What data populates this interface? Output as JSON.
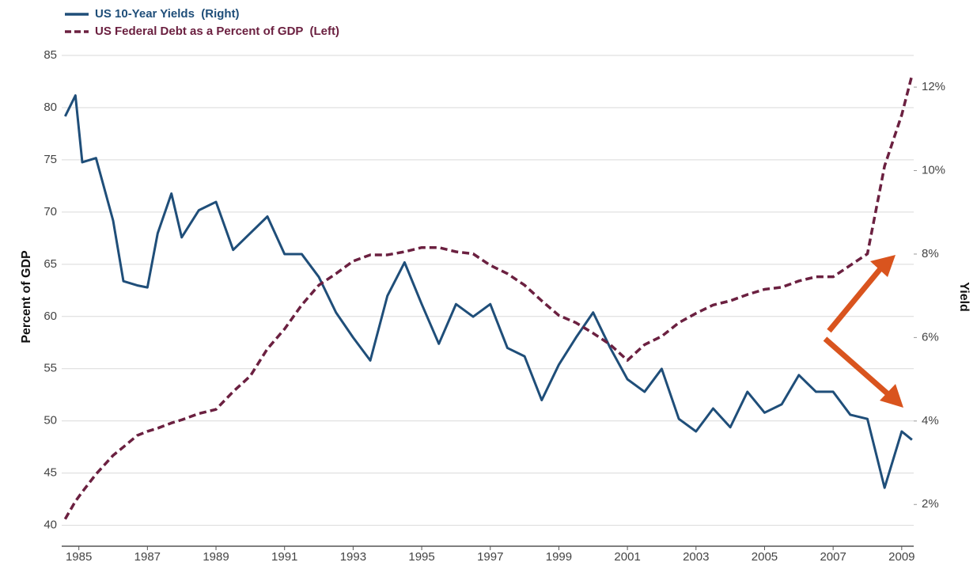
{
  "chart_data": {
    "type": "line",
    "y_label": "Percent of GDP",
    "y2_label": "Yield",
    "x": [
      1984.6,
      1984.9,
      1985.1,
      1985.5,
      1986.0,
      1986.3,
      1986.7,
      1987.0,
      1987.3,
      1987.7,
      1988.0,
      1988.5,
      1989.0,
      1989.5,
      1990.0,
      1990.5,
      1991.0,
      1991.5,
      1992.0,
      1992.5,
      1993.0,
      1993.5,
      1994.0,
      1994.5,
      1995.0,
      1995.5,
      1996.0,
      1996.5,
      1997.0,
      1997.5,
      1998.0,
      1998.5,
      1999.0,
      1999.5,
      2000.0,
      2000.5,
      2001.0,
      2001.5,
      2002.0,
      2002.5,
      2003.0,
      2003.5,
      2004.0,
      2004.5,
      2005.0,
      2005.5,
      2006.0,
      2006.5,
      2007.0,
      2007.5,
      2008.0,
      2008.5,
      2009.0,
      2009.3
    ],
    "series": [
      {
        "name": "US 10-Year Yields  (Right)",
        "color": "#1f4e79",
        "axis": "y2",
        "dashed": false,
        "values": [
          11.3,
          11.8,
          10.2,
          10.3,
          8.8,
          7.35,
          7.25,
          7.2,
          8.5,
          9.45,
          8.4,
          9.05,
          9.25,
          8.1,
          8.5,
          8.9,
          8.0,
          8.0,
          7.45,
          6.6,
          6.0,
          5.45,
          7.0,
          7.8,
          6.8,
          5.85,
          6.8,
          6.5,
          6.8,
          5.75,
          5.55,
          4.5,
          5.35,
          6.0,
          6.6,
          5.75,
          5.0,
          4.7,
          5.25,
          4.05,
          3.75,
          4.3,
          3.85,
          4.7,
          4.2,
          4.4,
          5.1,
          4.7,
          4.7,
          4.15,
          4.05,
          2.4,
          3.75,
          3.55
        ]
      },
      {
        "name": "US Federal Debt as a Percent of GDP  (Left)",
        "color": "#6b2040",
        "axis": "y",
        "dashed": true,
        "values": [
          40.6,
          42.3,
          43.2,
          44.9,
          46.7,
          47.5,
          48.6,
          49.0,
          49.3,
          49.8,
          50.1,
          50.7,
          51.1,
          52.8,
          54.3,
          56.9,
          58.8,
          61.1,
          63.0,
          64.1,
          65.3,
          65.9,
          65.9,
          66.2,
          66.6,
          66.6,
          66.2,
          66.0,
          64.9,
          64.1,
          63.0,
          61.5,
          60.1,
          59.4,
          58.4,
          57.3,
          55.8,
          57.3,
          58.1,
          59.4,
          60.3,
          61.1,
          61.5,
          62.1,
          62.6,
          62.8,
          63.4,
          63.8,
          63.8,
          64.9,
          66.0,
          74.4,
          79.3,
          83.1
        ]
      }
    ],
    "xlim": [
      1984.5,
      2009.35
    ],
    "xticks": [
      1985,
      1987,
      1989,
      1991,
      1993,
      1995,
      1997,
      1999,
      2001,
      2003,
      2005,
      2007,
      2009
    ],
    "ylim": [
      38,
      85
    ],
    "yticks": [
      40,
      45,
      50,
      55,
      60,
      65,
      70,
      75,
      80,
      85
    ],
    "y2lim": [
      1,
      12.76
    ],
    "y2ticks": [
      {
        "value": 2,
        "label": "2%"
      },
      {
        "value": 4,
        "label": "4%"
      },
      {
        "value": 6,
        "label": "6%"
      },
      {
        "value": 8,
        "label": "8%"
      },
      {
        "value": 10,
        "label": "10%"
      },
      {
        "value": 12,
        "label": "12%"
      }
    ],
    "grid": true
  }
}
